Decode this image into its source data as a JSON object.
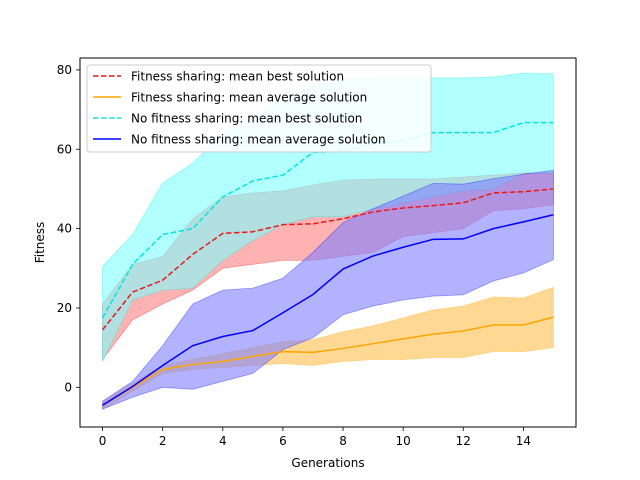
{
  "chart_data": {
    "type": "line",
    "title": "",
    "xlabel": "Generations",
    "ylabel": "Fitness",
    "xlim": [
      -0.75,
      15.75
    ],
    "ylim": [
      -10,
      83
    ],
    "xticks": [
      0,
      2,
      4,
      6,
      8,
      10,
      12,
      14
    ],
    "yticks": [
      0,
      20,
      40,
      60,
      80
    ],
    "x_tick_labels": [
      "0",
      "2",
      "4",
      "6",
      "8",
      "10",
      "12",
      "14"
    ],
    "y_tick_labels": [
      "0",
      "20",
      "40",
      "60",
      "80"
    ],
    "grid": false,
    "legend_position": "top-left",
    "x": [
      0,
      1,
      2,
      3,
      4,
      5,
      6,
      7,
      8,
      9,
      10,
      11,
      12,
      13,
      14,
      15
    ],
    "series": [
      {
        "name": "Fitness sharing: mean best solution",
        "color": "#e41a1c",
        "band_color": "#ff7f7f",
        "line_style": "dashed",
        "values": [
          14.5,
          24,
          27,
          33.5,
          38.8,
          39.2,
          41,
          41.2,
          42.5,
          44.2,
          45.2,
          45.8,
          46.5,
          49,
          49.3,
          50
        ],
        "upper": [
          21,
          31,
          33,
          42.5,
          48,
          49,
          49.5,
          51,
          52.2,
          52.5,
          52.5,
          52.5,
          53,
          53.5,
          54,
          54
        ],
        "lower": [
          7,
          17,
          21,
          24.5,
          30,
          31,
          32,
          32,
          33,
          34,
          38,
          39,
          40,
          44.5,
          45,
          46
        ]
      },
      {
        "name": "Fitness sharing: mean average solution",
        "color": "#ffa500",
        "band_color": "#ffc04d",
        "line_style": "solid",
        "values": [
          -4.5,
          0,
          4.5,
          5.8,
          6.5,
          7.8,
          9,
          8.8,
          9.8,
          11,
          12.2,
          13.4,
          14.2,
          15.7,
          15.7,
          17.7
        ],
        "upper": [
          -3.5,
          1,
          5.5,
          7,
          8.5,
          10,
          11.5,
          12,
          14,
          15.5,
          17.5,
          19.5,
          20.5,
          22.8,
          22.5,
          25.2
        ],
        "lower": [
          -5.5,
          -1,
          3.5,
          4.5,
          5,
          5.5,
          6,
          5.5,
          6.5,
          7,
          7,
          7.5,
          7.5,
          9,
          9,
          10
        ]
      },
      {
        "name": "No fitness sharing: mean best solution",
        "color": "#00e5e5",
        "band_color": "#7fffff",
        "line_style": "dashed",
        "values": [
          17.5,
          31,
          38.5,
          40,
          48,
          52,
          53.5,
          59.2,
          59.5,
          61.5,
          62.2,
          64.2,
          64.2,
          64.2,
          66.7,
          66.7
        ],
        "upper": [
          30.5,
          38.5,
          51.5,
          56.5,
          64,
          68,
          72.5,
          76,
          77.5,
          78,
          78,
          78,
          78,
          78.2,
          79.2,
          79
        ],
        "lower": [
          6.5,
          22,
          24.5,
          25,
          32,
          37,
          41,
          43,
          43,
          45,
          46.5,
          48,
          49.5,
          50,
          54,
          54
        ]
      },
      {
        "name": "No fitness sharing: mean average solution",
        "color": "#0000ff",
        "band_color": "#7f7fff",
        "line_style": "solid",
        "values": [
          -4.5,
          0.2,
          5.5,
          10.5,
          12.8,
          14.3,
          18.8,
          23.4,
          29.8,
          33.1,
          35.3,
          37.3,
          37.4,
          40,
          41.7,
          43.5
        ],
        "upper": [
          -3.5,
          1.5,
          10.5,
          21,
          24.5,
          25,
          27.5,
          34,
          41.5,
          45,
          48.2,
          51.4,
          51.2,
          52.6,
          53.7,
          54.7
        ],
        "lower": [
          -5.5,
          -2.5,
          0,
          -0.5,
          1.5,
          3.5,
          9.5,
          12.5,
          18.3,
          20.5,
          22,
          23,
          23.3,
          26.8,
          28.8,
          32.2
        ]
      }
    ]
  }
}
